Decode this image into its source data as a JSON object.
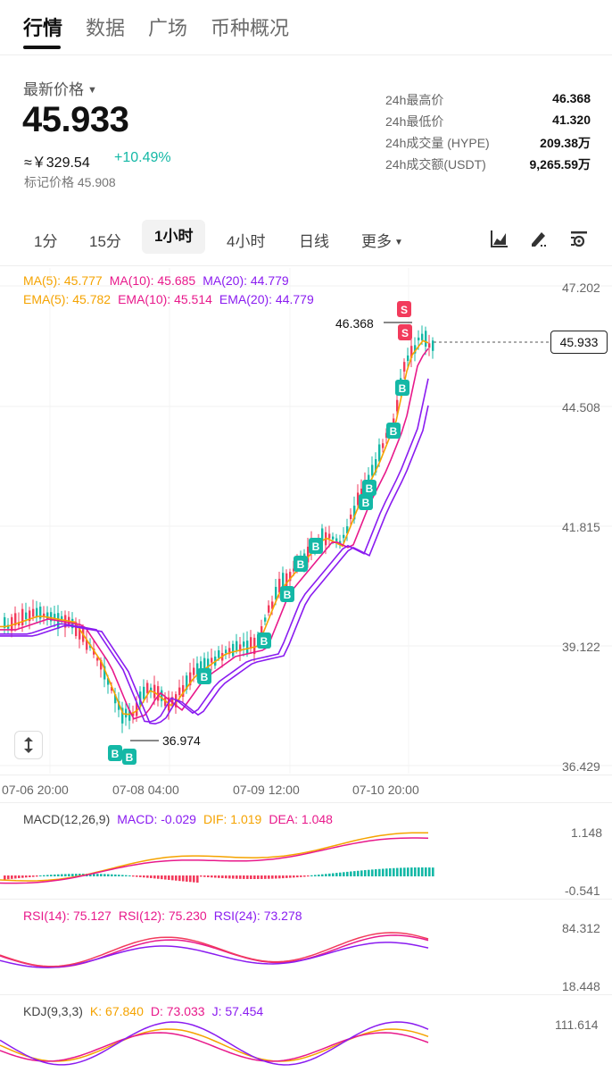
{
  "nav": {
    "tabs": [
      "行情",
      "数据",
      "广场",
      "币种概况"
    ]
  },
  "price": {
    "label": "最新价格",
    "last": "45.933",
    "cny": "≈￥329.54",
    "change": "+10.49%",
    "mark": "标记价格 45.908"
  },
  "stats": [
    {
      "k": "24h最高价",
      "v": "46.368"
    },
    {
      "k": "24h最低价",
      "v": "41.320"
    },
    {
      "k": "24h成交量 (HYPE)",
      "v": "209.38万"
    },
    {
      "k": "24h成交额(USDT)",
      "v": "9,265.59万"
    }
  ],
  "intervals": [
    "1分",
    "15分",
    "1小时",
    "4小时",
    "日线",
    "更多"
  ],
  "tools": [
    "indicator-chart-icon",
    "draw-pen-icon",
    "chart-settings-icon"
  ],
  "colors": {
    "up": "#14b8a6",
    "down": "#f23b5c",
    "ma5": "#f5a300",
    "ma10": "#e8198b",
    "ma20": "#8a1cf0"
  },
  "main_legend": {
    "ma5": "MA(5): 45.777",
    "ma10": "MA(10): 45.685",
    "ma20": "MA(20): 44.779",
    "ema5": "EMA(5): 45.782",
    "ema10": "EMA(10): 45.514",
    "ema20": "EMA(20): 44.779"
  },
  "price_axis": [
    "47.202",
    "44.508",
    "41.815",
    "39.122",
    "36.429"
  ],
  "time_axis": [
    "07-06 20:00",
    "07-08 04:00",
    "07-09 12:00",
    "07-10 20:00"
  ],
  "current_price_tag": "45.933",
  "high_marker": "46.368",
  "low_marker": "36.974",
  "trade_markers": {
    "buy": "B",
    "sell": "S"
  },
  "macd": {
    "title": "MACD(12,26,9)",
    "macd": "MACD: -0.029",
    "dif": "DIF: 1.019",
    "dea": "DEA: 1.048",
    "axis": [
      "1.148",
      "-0.541"
    ]
  },
  "rsi": {
    "r14": "RSI(14): 75.127",
    "r12": "RSI(12): 75.230",
    "r24": "RSI(24): 73.278",
    "axis": [
      "84.312",
      "18.448"
    ]
  },
  "kdj": {
    "title": "KDJ(9,3,3)",
    "k": "K: 67.840",
    "d": "D: 73.033",
    "j": "J: 57.454",
    "axis": [
      "111.614"
    ]
  }
}
